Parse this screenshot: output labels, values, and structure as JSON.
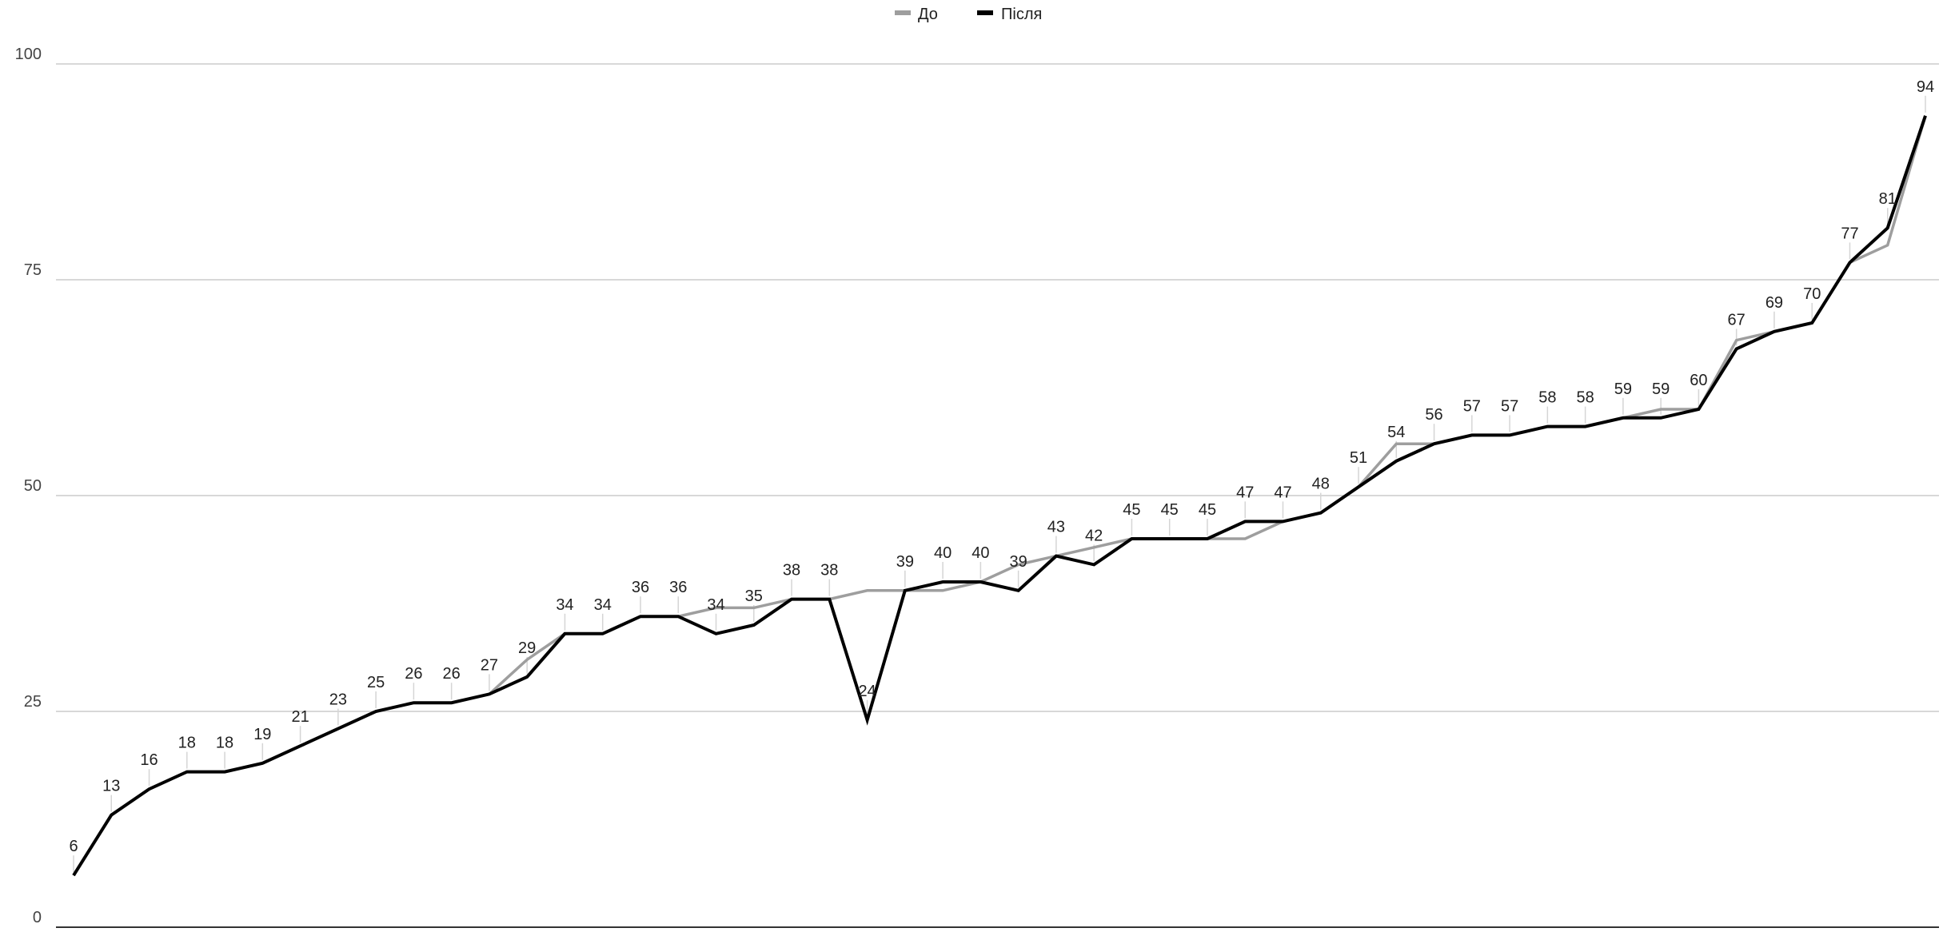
{
  "chart_data": {
    "type": "line",
    "title": "",
    "xlabel": "",
    "ylabel": "",
    "ylim": [
      0,
      100
    ],
    "yticks": [
      "0",
      "25",
      "50",
      "75",
      "100"
    ],
    "grid": true,
    "legend": "top-center",
    "series": [
      {
        "name": "До",
        "color": "#9e9e9e",
        "values": [
          6,
          13,
          16,
          18,
          18,
          19,
          21,
          23,
          25,
          26,
          26,
          27,
          31,
          34,
          34,
          36,
          36,
          37,
          37,
          38,
          38,
          39,
          39,
          39,
          40,
          42,
          43,
          44,
          45,
          45,
          45,
          45,
          47,
          48,
          51,
          56,
          56,
          57,
          57,
          58,
          58,
          59,
          60,
          60,
          68,
          69,
          70,
          77,
          79,
          94
        ]
      },
      {
        "name": "Після",
        "color": "#000000",
        "values": [
          6,
          13,
          16,
          18,
          18,
          19,
          21,
          23,
          25,
          26,
          26,
          27,
          29,
          34,
          34,
          36,
          36,
          34,
          35,
          38,
          38,
          24,
          39,
          40,
          40,
          39,
          43,
          42,
          45,
          45,
          45,
          47,
          47,
          48,
          51,
          54,
          56,
          57,
          57,
          58,
          58,
          59,
          59,
          60,
          67,
          69,
          70,
          77,
          81,
          94
        ]
      }
    ],
    "data_labels": [
      "6",
      "13",
      "16",
      "18",
      "18",
      "19",
      "21",
      "23",
      "25",
      "26",
      "26",
      "27",
      "29",
      "34",
      "34",
      "36",
      "36",
      "34",
      "35",
      "38",
      "38",
      "24",
      "39",
      "40",
      "40",
      "39",
      "43",
      "42",
      "45",
      "45",
      "45",
      "47",
      "47",
      "48",
      "51",
      "54",
      "56",
      "57",
      "57",
      "58",
      "58",
      "59",
      "59",
      "60",
      "67",
      "69",
      "70",
      "77",
      "81",
      "94"
    ]
  }
}
